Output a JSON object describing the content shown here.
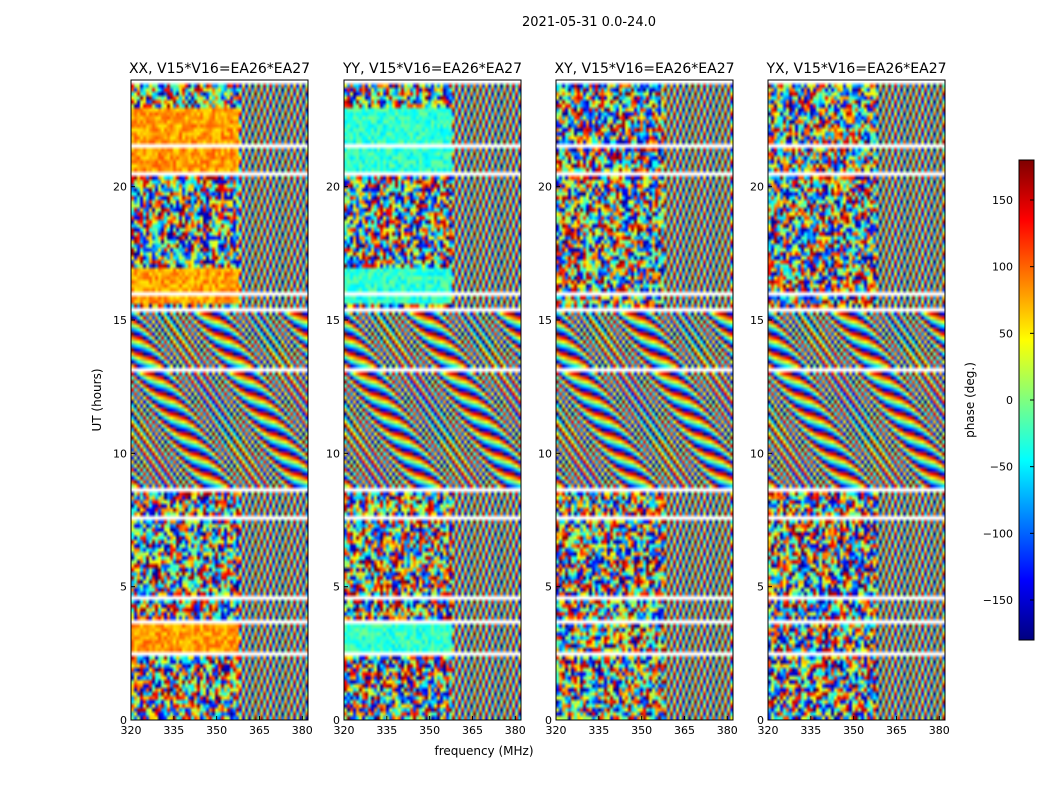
{
  "chart_data": {
    "type": "heatmap",
    "suptitle": "2021-05-31 0.0-24.0",
    "xlabel": "frequency (MHz)",
    "ylabel": "UT (hours)",
    "xlim": [
      320,
      382
    ],
    "ylim": [
      0,
      24
    ],
    "x_ticks": [
      320,
      335,
      350,
      365,
      380
    ],
    "y_ticks": [
      0,
      5,
      10,
      15,
      20
    ],
    "colorbar": {
      "label": "phase (deg.)",
      "range": [
        -180,
        180
      ],
      "ticks": [
        150,
        100,
        50,
        0,
        -50,
        -100,
        -150
      ],
      "colormap": "jet"
    },
    "panels": [
      {
        "title": "XX, V15*V16=EA26*EA27"
      },
      {
        "title": "YY, V15*V16=EA26*EA27"
      },
      {
        "title": "XY, V15*V16=EA26*EA27"
      },
      {
        "title": "YX, V15*V16=EA26*EA27"
      }
    ]
  }
}
